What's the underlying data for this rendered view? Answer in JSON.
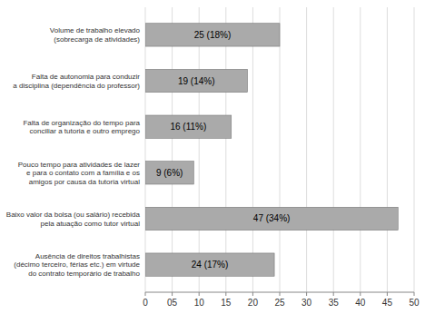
{
  "chart_data": {
    "type": "bar",
    "orientation": "horizontal",
    "categories": [
      "Ausência de direitos trabalhistas\n(décimo terceiro, férias etc.) em virtude\ndo contrato temporário de trabalho",
      "Baixo valor da bolsa (ou salário) recebida\npela atuação como tutor virtual",
      "Pouco tempo para atividades de lazer\ne para o contato com a família e os\namigos por causa da tutoria virtual",
      "Falta de organização do tempo para\nconciliar a tutoria e outro emprego",
      "Falta de autonomia para conduzir\na disciplina (dependência do professor)",
      "Volume de trabalho elevado\n(sobrecarga de atividades)"
    ],
    "values": [
      24,
      47,
      9,
      16,
      19,
      25
    ],
    "value_labels": [
      "24 (17%)",
      "47 (34%)",
      "9 (6%)",
      "16 (11%)",
      "19 (14%)",
      "25 (18%)"
    ],
    "color": "#aaaaaa",
    "xlim": [
      0,
      50
    ],
    "xticks": [
      0,
      {
        "value": 5,
        "label": "05"
      },
      10,
      15,
      20,
      25,
      30,
      35,
      40,
      45,
      50
    ],
    "grid": true
  }
}
